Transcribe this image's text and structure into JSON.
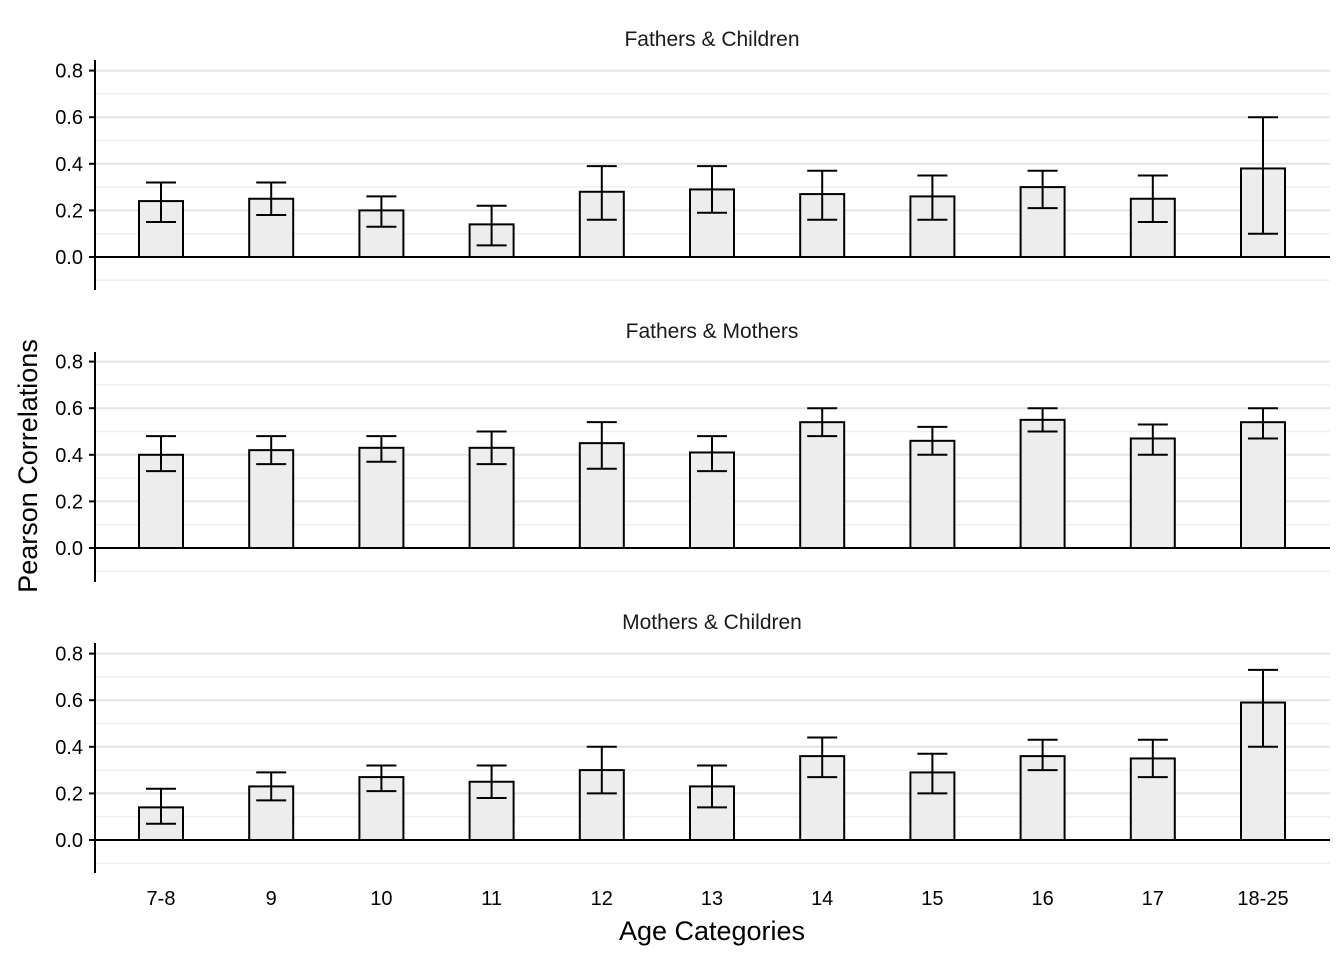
{
  "chart_data": {
    "type": "bar",
    "xlabel": "Age Categories",
    "ylabel": "Pearson Correlations",
    "ylim": [
      -0.14,
      0.84
    ],
    "yticks": [
      "0.0",
      "0.2",
      "0.4",
      "0.6",
      "0.8"
    ],
    "grid": "horizontal",
    "categories": [
      "7-8",
      "9",
      "10",
      "11",
      "12",
      "13",
      "14",
      "15",
      "16",
      "17",
      "18-25"
    ],
    "panels": [
      {
        "title": "Fathers & Children",
        "values": [
          0.24,
          0.25,
          0.2,
          0.14,
          0.28,
          0.29,
          0.27,
          0.26,
          0.3,
          0.25,
          0.38
        ],
        "lower": [
          0.15,
          0.18,
          0.13,
          0.05,
          0.16,
          0.19,
          0.16,
          0.16,
          0.21,
          0.15,
          0.1
        ],
        "upper": [
          0.32,
          0.32,
          0.26,
          0.22,
          0.39,
          0.39,
          0.37,
          0.35,
          0.37,
          0.35,
          0.6
        ]
      },
      {
        "title": "Fathers & Mothers",
        "values": [
          0.4,
          0.42,
          0.43,
          0.43,
          0.45,
          0.41,
          0.54,
          0.46,
          0.55,
          0.47,
          0.54
        ],
        "lower": [
          0.33,
          0.36,
          0.37,
          0.36,
          0.34,
          0.33,
          0.48,
          0.4,
          0.5,
          0.4,
          0.47
        ],
        "upper": [
          0.48,
          0.48,
          0.48,
          0.5,
          0.54,
          0.48,
          0.6,
          0.52,
          0.6,
          0.53,
          0.6
        ]
      },
      {
        "title": "Mothers & Children",
        "values": [
          0.14,
          0.23,
          0.27,
          0.25,
          0.3,
          0.23,
          0.36,
          0.29,
          0.36,
          0.35,
          0.59
        ],
        "lower": [
          0.07,
          0.17,
          0.21,
          0.18,
          0.2,
          0.14,
          0.27,
          0.2,
          0.3,
          0.27,
          0.4
        ],
        "upper": [
          0.22,
          0.29,
          0.32,
          0.32,
          0.4,
          0.32,
          0.44,
          0.37,
          0.43,
          0.43,
          0.73
        ]
      }
    ]
  }
}
